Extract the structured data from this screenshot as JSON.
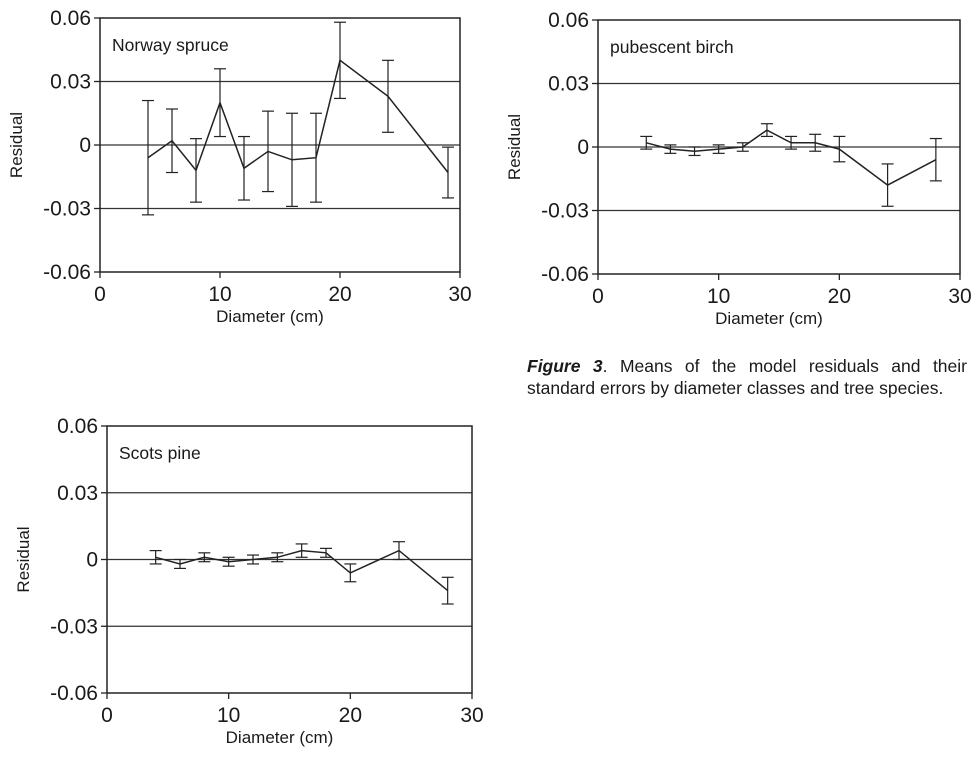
{
  "chart_data": [
    {
      "type": "line",
      "title": "Norway spruce",
      "xlabel": "Diameter (cm)",
      "ylabel": "Residual",
      "xlim": [
        0,
        30
      ],
      "ylim": [
        -0.06,
        0.06
      ],
      "x_ticks": [
        "0",
        "10",
        "20",
        "30"
      ],
      "y_ticks": [
        "0.06",
        "0.03",
        "0",
        "-0.03",
        "-0.06"
      ],
      "grid_y": true,
      "points": [
        {
          "x": 4,
          "y": -0.006,
          "err": 0.027
        },
        {
          "x": 6,
          "y": 0.002,
          "err": 0.015
        },
        {
          "x": 8,
          "y": -0.012,
          "err": 0.015
        },
        {
          "x": 10,
          "y": 0.02,
          "err": 0.016
        },
        {
          "x": 12,
          "y": -0.011,
          "err": 0.015
        },
        {
          "x": 14,
          "y": -0.003,
          "err": 0.019
        },
        {
          "x": 16,
          "y": -0.007,
          "err": 0.022
        },
        {
          "x": 18,
          "y": -0.006,
          "err": 0.021
        },
        {
          "x": 20,
          "y": 0.04,
          "err": 0.018
        },
        {
          "x": 24,
          "y": 0.023,
          "err": 0.017
        },
        {
          "x": 29,
          "y": -0.013,
          "err": 0.012
        }
      ]
    },
    {
      "type": "line",
      "title": "pubescent birch",
      "xlabel": "Diameter (cm)",
      "ylabel": "Residual",
      "xlim": [
        0,
        30
      ],
      "ylim": [
        -0.06,
        0.06
      ],
      "x_ticks": [
        "0",
        "10",
        "20",
        "30"
      ],
      "y_ticks": [
        "0.06",
        "0.03",
        "0",
        "-0.03",
        "-0.06"
      ],
      "grid_y": true,
      "points": [
        {
          "x": 4,
          "y": 0.002,
          "err": 0.003
        },
        {
          "x": 6,
          "y": -0.001,
          "err": 0.002
        },
        {
          "x": 8,
          "y": -0.002,
          "err": 0.002
        },
        {
          "x": 10,
          "y": -0.001,
          "err": 0.002
        },
        {
          "x": 12,
          "y": 0.0,
          "err": 0.002
        },
        {
          "x": 14,
          "y": 0.008,
          "err": 0.003
        },
        {
          "x": 16,
          "y": 0.002,
          "err": 0.003
        },
        {
          "x": 18,
          "y": 0.002,
          "err": 0.004
        },
        {
          "x": 20,
          "y": -0.001,
          "err": 0.006
        },
        {
          "x": 24,
          "y": -0.018,
          "err": 0.01
        },
        {
          "x": 28,
          "y": -0.006,
          "err": 0.01
        }
      ]
    },
    {
      "type": "line",
      "title": "Scots pine",
      "xlabel": "Diameter (cm)",
      "ylabel": "Residual",
      "xlim": [
        0,
        30
      ],
      "ylim": [
        -0.06,
        0.06
      ],
      "x_ticks": [
        "0",
        "10",
        "20",
        "30"
      ],
      "y_ticks": [
        "0.06",
        "0.03",
        "0",
        "-0.03",
        "-0.06"
      ],
      "grid_y": true,
      "points": [
        {
          "x": 4,
          "y": 0.001,
          "err": 0.003
        },
        {
          "x": 6,
          "y": -0.002,
          "err": 0.002
        },
        {
          "x": 8,
          "y": 0.001,
          "err": 0.002
        },
        {
          "x": 10,
          "y": -0.001,
          "err": 0.002
        },
        {
          "x": 12,
          "y": 0.0,
          "err": 0.002
        },
        {
          "x": 14,
          "y": 0.001,
          "err": 0.002
        },
        {
          "x": 16,
          "y": 0.004,
          "err": 0.003
        },
        {
          "x": 18,
          "y": 0.003,
          "err": 0.002
        },
        {
          "x": 20,
          "y": -0.006,
          "err": 0.004
        },
        {
          "x": 24,
          "y": 0.004,
          "err": 0.004
        },
        {
          "x": 28,
          "y": -0.014,
          "err": 0.006
        }
      ]
    }
  ],
  "caption": {
    "label": "Figure 3",
    "text": ". Means of the model residuals and their standard errors by diameter classes and tree species."
  }
}
